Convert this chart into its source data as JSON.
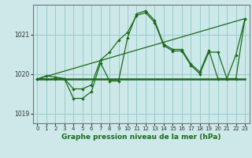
{
  "title": "Graphe pression niveau de la mer (hPa)",
  "background_color": "#cce8e8",
  "grid_color": "#99cccc",
  "line_color": "#1a6b1a",
  "xlim": [
    -0.5,
    23.5
  ],
  "ylim": [
    1018.75,
    1021.75
  ],
  "yticks": [
    1019,
    1020,
    1021
  ],
  "xticks": [
    0,
    1,
    2,
    3,
    4,
    5,
    6,
    7,
    8,
    9,
    10,
    11,
    12,
    13,
    14,
    15,
    16,
    17,
    18,
    19,
    20,
    21,
    22,
    23
  ],
  "series1_x": [
    0,
    1,
    2,
    3,
    4,
    5,
    6,
    7,
    8,
    9,
    10,
    11,
    12,
    13,
    14,
    15,
    16,
    17,
    18,
    19,
    20,
    21,
    22,
    23
  ],
  "series1_y": [
    1019.87,
    1019.95,
    1019.92,
    1019.88,
    1019.62,
    1019.62,
    1019.72,
    1020.35,
    1020.55,
    1020.85,
    1021.05,
    1021.48,
    1021.55,
    1021.3,
    1020.72,
    1020.58,
    1020.58,
    1020.22,
    1020.0,
    1020.55,
    1020.55,
    1019.88,
    1020.48,
    1021.4
  ],
  "series2_x": [
    0,
    1,
    2,
    3,
    4,
    5,
    6,
    7,
    8,
    9,
    10,
    11,
    12,
    13,
    14,
    15,
    16,
    17,
    18,
    19,
    20,
    21,
    22,
    23
  ],
  "series2_y": [
    1019.87,
    1019.87,
    1019.87,
    1019.88,
    1019.38,
    1019.38,
    1019.55,
    1020.28,
    1019.82,
    1019.82,
    1020.92,
    1021.52,
    1021.6,
    1021.35,
    1020.75,
    1020.62,
    1020.62,
    1020.25,
    1020.05,
    1020.6,
    1019.88,
    1019.88,
    1019.88,
    1021.4
  ],
  "series3_x": [
    0,
    23
  ],
  "series3_y": [
    1019.87,
    1019.87
  ],
  "series4_x": [
    0,
    23
  ],
  "series4_y": [
    1019.87,
    1021.4
  ]
}
